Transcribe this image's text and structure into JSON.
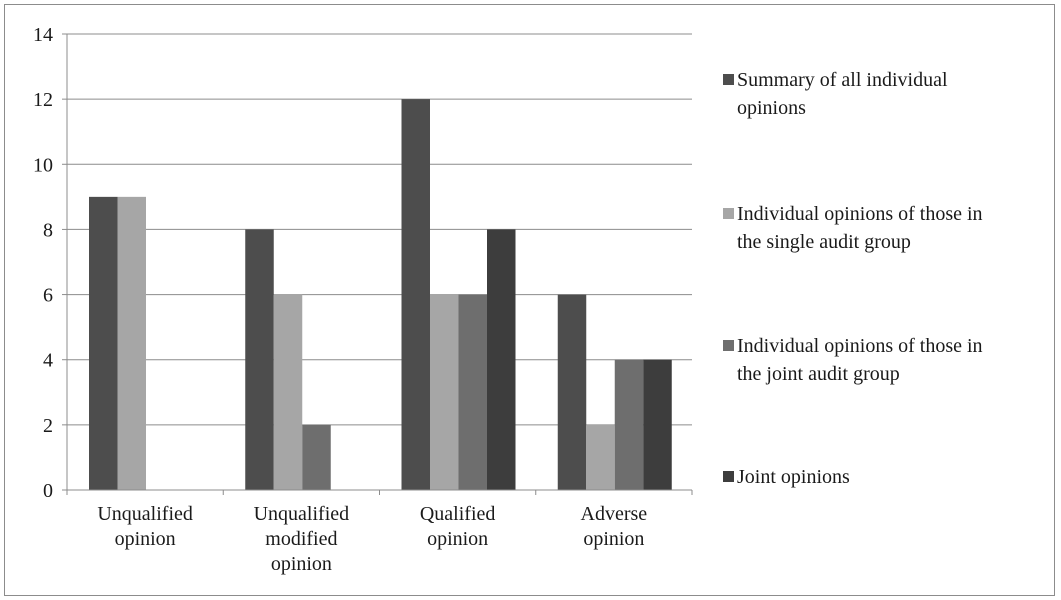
{
  "chart_data": {
    "type": "bar",
    "title": "",
    "xlabel": "",
    "ylabel": "",
    "categories": [
      [
        "Unqualified",
        "opinion"
      ],
      [
        "Unqualified",
        "modified",
        "opinion"
      ],
      [
        "Qualified",
        "opinion"
      ],
      [
        "Adverse",
        "opinion"
      ]
    ],
    "series": [
      {
        "name": [
          "Summary of all individual",
          "opinions"
        ],
        "color": "#4d4d4d",
        "values": [
          9,
          8,
          12,
          6
        ]
      },
      {
        "name": [
          "Individual opinions of those in",
          "the single audit group"
        ],
        "color": "#a6a6a6",
        "values": [
          9,
          6,
          6,
          2
        ]
      },
      {
        "name": [
          "Individual opinions of those in",
          "the joint audit group"
        ],
        "color": "#6e6e6e",
        "values": [
          0,
          2,
          6,
          4
        ]
      },
      {
        "name": [
          "Joint opinions"
        ],
        "color": "#3d3d3d",
        "values": [
          0,
          0,
          8,
          4
        ]
      }
    ],
    "ylim": [
      0,
      14
    ],
    "yticks": [
      "0",
      "2",
      "4",
      "6",
      "8",
      "10",
      "12",
      "14"
    ],
    "grid": true,
    "legend_position": "right"
  }
}
